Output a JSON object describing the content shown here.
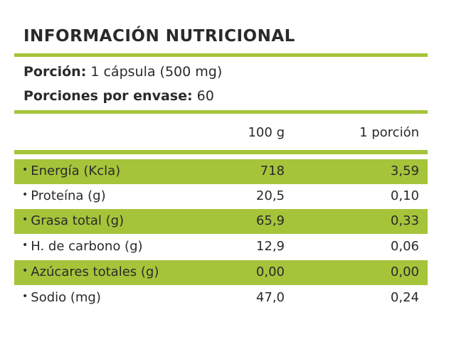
{
  "title": "INFORMACIÓN NUTRICIONAL",
  "serving": {
    "label": "Porción:",
    "value": "1 cápsula (500 mg)"
  },
  "servings_per_container": {
    "label": "Porciones por envase:",
    "value": "60"
  },
  "columns": {
    "per_100g": "100 g",
    "per_serving": "1 porción"
  },
  "bullet": "•",
  "rows": [
    {
      "name": "Energía (Kcla)",
      "per_100g": "718",
      "per_serving": "3,59"
    },
    {
      "name": "Proteína (g)",
      "per_100g": "20,5",
      "per_serving": "0,10"
    },
    {
      "name": "Grasa total (g)",
      "per_100g": "65,9",
      "per_serving": "0,33"
    },
    {
      "name": "H. de carbono (g)",
      "per_100g": "12,9",
      "per_serving": "0,06"
    },
    {
      "name": "Azúcares totales (g)",
      "per_100g": "0,00",
      "per_serving": "0,00"
    },
    {
      "name": "Sodio (mg)",
      "per_100g": "47,0",
      "per_serving": "0,24"
    }
  ],
  "colors": {
    "accent": "#a6c43a",
    "text": "#2a2a2a",
    "background": "#ffffff"
  }
}
